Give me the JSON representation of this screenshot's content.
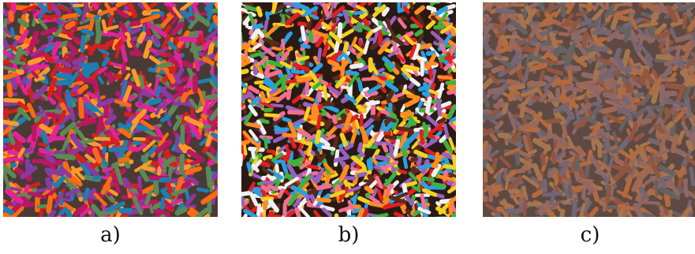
{
  "panels": [
    {
      "id": "a",
      "caption": "a)",
      "background": "#4a3a35",
      "palette": [
        "#e0259a",
        "#ff6a10",
        "#1d7fb0",
        "#d42020",
        "#5b8a55",
        "#8a3aa0",
        "#ff9a2a",
        "#b81860"
      ]
    },
    {
      "id": "b",
      "caption": "b)",
      "background": "#2a1a14",
      "palette": [
        "#f0f0f0",
        "#e02020",
        "#f5d020",
        "#2aa0e0",
        "#40b040",
        "#f07090",
        "#ff8c20",
        "#5a2a1a",
        "#9a60c0"
      ]
    },
    {
      "id": "c",
      "caption": "c)",
      "background": "#5e4a42",
      "palette": [
        "#c9733f",
        "#b0705a",
        "#7a6e80",
        "#9a7070",
        "#b88050",
        "#6a6a6a",
        "#a05a40"
      ]
    }
  ]
}
